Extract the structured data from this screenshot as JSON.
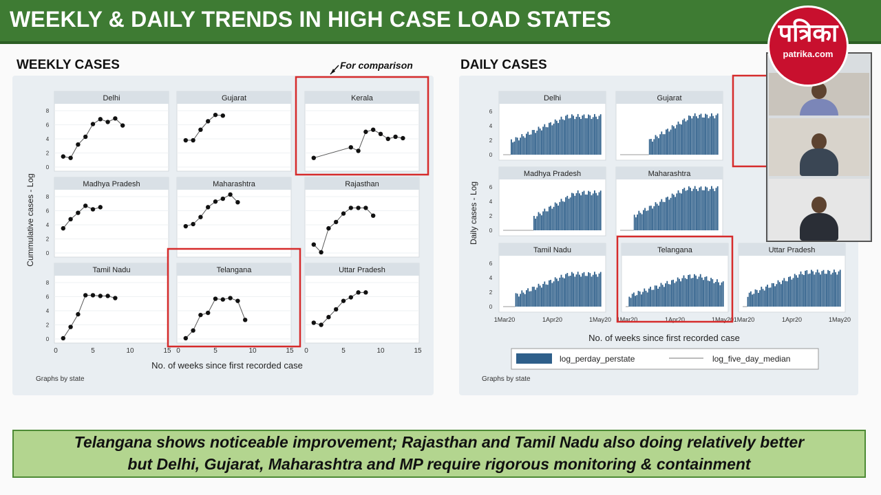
{
  "title": "WEEKLY & DAILY TRENDS IN HIGH CASE LOAD STATES",
  "weekly": {
    "section_title": "WEEKLY CASES",
    "annotation": "For comparison",
    "ylabel": "Cummulative cases - Log",
    "xlabel": "No. of weeks since first recorded case",
    "note": "Graphs by state"
  },
  "daily": {
    "section_title": "DAILY CASES",
    "ylabel": "Daily cases - Log",
    "xlabel": "No. of weeks since first recorded case",
    "note": "Graphs by state",
    "legend": [
      "log_perday_perstate",
      "log_five_day_median"
    ]
  },
  "footer": {
    "line1": "Telangana shows noticeable improvement; Rajasthan and Tamil Nadu also doing relatively better",
    "line2": "but Delhi, Gujarat, Maharashtra and MP require rigorous monitoring & containment"
  },
  "logo": {
    "text": "पत्रिका",
    "site": "patrika.com"
  },
  "colors": {
    "title_bar": "#3e7b33",
    "bar": "#2e5f8a",
    "highlight": "#d62b2b",
    "footer": "#b3d58f"
  },
  "chart_data": [
    {
      "type": "scatter",
      "title": "WEEKLY CASES",
      "ylabel": "Cummulative cases - Log",
      "xlabel": "No. of weeks since first recorded case",
      "xlim": [
        0,
        15
      ],
      "ylim": [
        0,
        8
      ],
      "xticks": [
        0,
        5,
        10,
        15
      ],
      "yticks": [
        0,
        2,
        4,
        6,
        8
      ],
      "highlighted": [
        "Kerala",
        "Telangana"
      ],
      "series": [
        {
          "name": "Delhi",
          "points": [
            [
              1,
              1.5
            ],
            [
              2,
              1.3
            ],
            [
              3,
              3.2
            ],
            [
              4,
              4.3
            ],
            [
              5,
              6.1
            ],
            [
              6,
              6.8
            ],
            [
              7,
              6.4
            ],
            [
              8,
              6.9
            ],
            [
              9,
              5.9
            ]
          ]
        },
        {
          "name": "Gujarat",
          "points": [
            [
              1,
              3.8
            ],
            [
              2,
              3.8
            ],
            [
              3,
              5.3
            ],
            [
              4,
              6.5
            ],
            [
              5,
              7.4
            ],
            [
              6,
              7.3
            ]
          ]
        },
        {
          "name": "Kerala",
          "points": [
            [
              1,
              1.3
            ],
            [
              6,
              2.8
            ],
            [
              7,
              2.3
            ],
            [
              8,
              5
            ],
            [
              9,
              5.3
            ],
            [
              10,
              4.7
            ],
            [
              11,
              4
            ],
            [
              12,
              4.3
            ],
            [
              13,
              4.1
            ]
          ]
        },
        {
          "name": "Madhya Pradesh",
          "points": [
            [
              1,
              3.5
            ],
            [
              2,
              4.8
            ],
            [
              3,
              5.7
            ],
            [
              4,
              6.7
            ],
            [
              5,
              6.2
            ],
            [
              6,
              6.5
            ]
          ]
        },
        {
          "name": "Maharashtra",
          "points": [
            [
              1,
              3.8
            ],
            [
              2,
              4.1
            ],
            [
              3,
              5.1
            ],
            [
              4,
              6.5
            ],
            [
              5,
              7.3
            ],
            [
              6,
              7.7
            ],
            [
              7,
              8.3
            ],
            [
              8,
              7.2
            ]
          ]
        },
        {
          "name": "Rajasthan",
          "points": [
            [
              1,
              1.2
            ],
            [
              2,
              0.1
            ],
            [
              3,
              3.5
            ],
            [
              4,
              4.4
            ],
            [
              5,
              5.6
            ],
            [
              6,
              6.4
            ],
            [
              7,
              6.4
            ],
            [
              8,
              6.4
            ],
            [
              9,
              5.3
            ]
          ]
        },
        {
          "name": "Tamil Nadu",
          "points": [
            [
              1,
              0.1
            ],
            [
              2,
              1.7
            ],
            [
              3,
              3.5
            ],
            [
              4,
              6.2
            ],
            [
              5,
              6.2
            ],
            [
              6,
              6.1
            ],
            [
              7,
              6.1
            ],
            [
              8,
              5.8
            ]
          ]
        },
        {
          "name": "Telangana",
          "points": [
            [
              1,
              0.1
            ],
            [
              2,
              1.2
            ],
            [
              3,
              3.4
            ],
            [
              4,
              3.7
            ],
            [
              5,
              5.7
            ],
            [
              6,
              5.6
            ],
            [
              7,
              5.8
            ],
            [
              8,
              5.4
            ],
            [
              9,
              2.7
            ]
          ]
        },
        {
          "name": "Uttar Pradesh",
          "points": [
            [
              1,
              2.3
            ],
            [
              2,
              2
            ],
            [
              3,
              3.1
            ],
            [
              4,
              4.2
            ],
            [
              5,
              5.4
            ],
            [
              6,
              5.9
            ],
            [
              7,
              6.6
            ],
            [
              8,
              6.6
            ]
          ]
        }
      ]
    },
    {
      "type": "bar",
      "title": "DAILY CASES",
      "ylabel": "Daily cases - Log",
      "xlabel": "No. of weeks since first recorded case",
      "xticks": [
        "1Mar20",
        "1Apr20",
        "1May20"
      ],
      "yticks": [
        0,
        2,
        4,
        6
      ],
      "ylim": [
        0,
        6.5
      ],
      "legend_position": "bottom",
      "highlighted": [
        "Telangana"
      ],
      "series": [
        {
          "name": "Delhi",
          "start_day": 5,
          "end_day": 64,
          "peak": 5.3
        },
        {
          "name": "Gujarat",
          "start_day": 19,
          "end_day": 64,
          "peak": 5.4
        },
        {
          "name": "Madhya Pradesh",
          "start_day": 20,
          "end_day": 64,
          "peak": 5.2
        },
        {
          "name": "Maharashtra",
          "start_day": 9,
          "end_day": 64,
          "peak": 5.8
        },
        {
          "name": "Tamil Nadu",
          "start_day": 8,
          "end_day": 64,
          "peak": 4.5
        },
        {
          "name": "Telangana",
          "start_day": 2,
          "end_day": 64,
          "peak": 4.2
        },
        {
          "name": "Uttar Pradesh",
          "start_day": 3,
          "end_day": 64,
          "peak": 4.8
        }
      ]
    }
  ]
}
